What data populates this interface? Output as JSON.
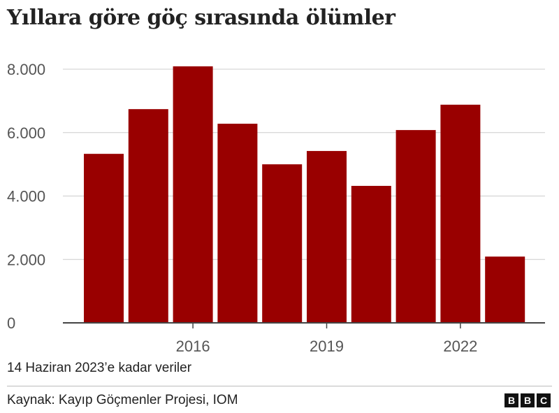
{
  "title": "Yıllara göre göç sırasında ölümler",
  "note": "14 Haziran 2023’e kadar veriler",
  "source": "Kaynak: Kayıp Göçmenler Projesi, IOM",
  "logo": [
    "B",
    "B",
    "C"
  ],
  "colors": {
    "bar": "#990000",
    "grid": "#cccccc",
    "axis": "#444444"
  },
  "chart_data": {
    "type": "bar",
    "title": "Yıllara göre göç sırasında ölümler",
    "categories": [
      "2014",
      "2015",
      "2016",
      "2017",
      "2018",
      "2019",
      "2020",
      "2021",
      "2022",
      "2023"
    ],
    "values": [
      5330,
      6740,
      8090,
      6280,
      5000,
      5420,
      4320,
      6080,
      6880,
      2090
    ],
    "xlabel": "",
    "ylabel": "",
    "ylim": [
      0,
      8000
    ],
    "yticks": [
      0,
      2000,
      4000,
      6000,
      8000
    ],
    "ytick_labels": [
      "0",
      "2.000",
      "4.000",
      "6.000",
      "8.000"
    ],
    "xtick_labels": [
      "2016",
      "2019",
      "2022"
    ],
    "grid": true
  }
}
